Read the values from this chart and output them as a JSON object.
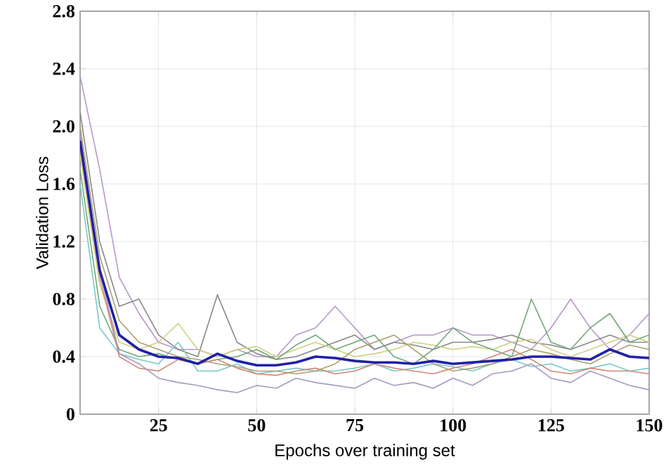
{
  "chart_data": {
    "type": "line",
    "xlabel": "Epochs over training set",
    "ylabel": "Validation Loss",
    "x": [
      5,
      10,
      15,
      20,
      25,
      30,
      35,
      40,
      45,
      50,
      55,
      60,
      65,
      70,
      75,
      80,
      85,
      90,
      95,
      100,
      105,
      110,
      115,
      120,
      125,
      130,
      135,
      140,
      145,
      150
    ],
    "xlim": [
      5,
      150
    ],
    "xticks": [
      25,
      50,
      75,
      100,
      125,
      150
    ],
    "ylim": [
      0,
      2.8
    ],
    "yticks": [
      0,
      0.4,
      0.8,
      1.2,
      1.6,
      {
        "value": 2,
        "label": "2.0"
      },
      2.4,
      2.8
    ],
    "grid": true,
    "line_style": "solid",
    "marker": "none",
    "series": [
      {
        "color": "#b898c8",
        "values": [
          2.35,
          1.7,
          0.95,
          0.7,
          0.5,
          0.45,
          0.45,
          0.4,
          0.45,
          0.4,
          0.4,
          0.55,
          0.6,
          0.75,
          0.6,
          0.45,
          0.5,
          0.55,
          0.55,
          0.6,
          0.55,
          0.55,
          0.5,
          0.45,
          0.6,
          0.8,
          0.6,
          0.45,
          0.55,
          0.7
        ]
      },
      {
        "color": "#888888",
        "values": [
          2.1,
          1.2,
          0.75,
          0.8,
          0.55,
          0.45,
          0.4,
          0.83,
          0.5,
          0.42,
          0.38,
          0.4,
          0.45,
          0.5,
          0.55,
          0.45,
          0.5,
          0.48,
          0.45,
          0.5,
          0.5,
          0.52,
          0.55,
          0.5,
          0.48,
          0.45,
          0.5,
          0.55,
          0.5,
          0.5
        ]
      },
      {
        "color": "#d0d080",
        "values": [
          1.8,
          0.9,
          0.5,
          0.45,
          0.5,
          0.63,
          0.45,
          0.4,
          0.45,
          0.47,
          0.4,
          0.45,
          0.5,
          0.45,
          0.4,
          0.42,
          0.45,
          0.5,
          0.48,
          0.45,
          0.47,
          0.45,
          0.5,
          0.52,
          0.45,
          0.4,
          0.45,
          0.5,
          0.55,
          0.5
        ]
      },
      {
        "color": "#70a878",
        "values": [
          1.7,
          0.75,
          0.45,
          0.4,
          0.42,
          0.38,
          0.35,
          0.38,
          0.4,
          0.45,
          0.38,
          0.48,
          0.55,
          0.45,
          0.5,
          0.55,
          0.4,
          0.35,
          0.45,
          0.6,
          0.5,
          0.45,
          0.4,
          0.8,
          0.5,
          0.45,
          0.6,
          0.7,
          0.5,
          0.55
        ]
      },
      {
        "color": "#78c8c8",
        "values": [
          1.6,
          0.6,
          0.42,
          0.38,
          0.35,
          0.5,
          0.3,
          0.3,
          0.35,
          0.28,
          0.3,
          0.32,
          0.3,
          0.3,
          0.32,
          0.35,
          0.3,
          0.32,
          0.35,
          0.33,
          0.3,
          0.35,
          0.38,
          0.33,
          0.35,
          0.3,
          0.32,
          0.35,
          0.3,
          0.32
        ]
      },
      {
        "color": "#d08878",
        "values": [
          1.85,
          0.95,
          0.4,
          0.32,
          0.3,
          0.38,
          0.35,
          0.38,
          0.32,
          0.28,
          0.27,
          0.3,
          0.32,
          0.28,
          0.3,
          0.35,
          0.32,
          0.3,
          0.28,
          0.32,
          0.35,
          0.4,
          0.45,
          0.38,
          0.3,
          0.28,
          0.32,
          0.3,
          0.3,
          0.28
        ]
      },
      {
        "color": "#a898c0",
        "values": [
          1.95,
          1.0,
          0.42,
          0.35,
          0.25,
          0.22,
          0.2,
          0.17,
          0.15,
          0.2,
          0.18,
          0.25,
          0.22,
          0.2,
          0.18,
          0.25,
          0.2,
          0.22,
          0.18,
          0.25,
          0.2,
          0.28,
          0.3,
          0.35,
          0.25,
          0.22,
          0.3,
          0.25,
          0.2,
          0.17
        ]
      },
      {
        "color": "#a8a070",
        "values": [
          2.0,
          1.1,
          0.65,
          0.5,
          0.45,
          0.4,
          0.38,
          0.35,
          0.33,
          0.3,
          0.3,
          0.28,
          0.3,
          0.35,
          0.45,
          0.5,
          0.55,
          0.45,
          0.35,
          0.3,
          0.32,
          0.35,
          0.4,
          0.45,
          0.42,
          0.38,
          0.35,
          0.42,
          0.48,
          0.45
        ]
      },
      {
        "color": "#2020a8",
        "values": [
          1.9,
          1.0,
          0.55,
          0.45,
          0.4,
          0.39,
          0.35,
          0.42,
          0.37,
          0.34,
          0.34,
          0.36,
          0.4,
          0.39,
          0.37,
          0.36,
          0.36,
          0.35,
          0.37,
          0.35,
          0.36,
          0.37,
          0.38,
          0.4,
          0.4,
          0.39,
          0.38,
          0.45,
          0.4,
          0.39
        ]
      }
    ]
  }
}
